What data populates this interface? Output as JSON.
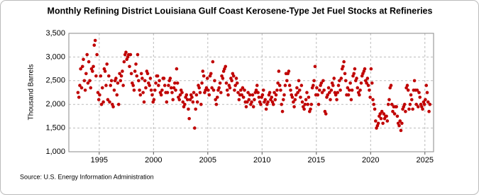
{
  "chart_data": {
    "type": "scatter",
    "title": "Monthly Refining District Louisiana Gulf Coast Kerosene-Type Jet Fuel Stocks at Refineries",
    "y_label": "Thousand Barrels",
    "source": "Source: U.S. Energy Information Administration",
    "color": "#c00000",
    "grid": true,
    "xlim": [
      1992.2,
      2025.8
    ],
    "ylim": [
      1000,
      3500
    ],
    "xticks": [
      1995,
      2000,
      2005,
      2010,
      2015,
      2020,
      2025
    ],
    "yticks": [
      {
        "value": 1000,
        "label": "1,000"
      },
      {
        "value": 1500,
        "label": "1,500"
      },
      {
        "value": 2000,
        "label": "2,000"
      },
      {
        "value": 2500,
        "label": "2,500"
      },
      {
        "value": 3000,
        "label": "3,000"
      },
      {
        "value": 3500,
        "label": "3,500"
      }
    ],
    "x": [
      1993.04,
      1993.13,
      1993.21,
      1993.29,
      1993.38,
      1993.46,
      1993.54,
      1993.63,
      1993.71,
      1993.79,
      1993.88,
      1993.96,
      1994.04,
      1994.13,
      1994.21,
      1994.29,
      1994.38,
      1994.46,
      1994.54,
      1994.63,
      1994.71,
      1994.79,
      1994.88,
      1994.96,
      1995.04,
      1995.13,
      1995.21,
      1995.29,
      1995.38,
      1995.46,
      1995.54,
      1995.63,
      1995.71,
      1995.79,
      1995.88,
      1995.96,
      1996.04,
      1996.13,
      1996.21,
      1996.29,
      1996.38,
      1996.46,
      1996.54,
      1996.63,
      1996.71,
      1996.79,
      1996.88,
      1996.96,
      1997.04,
      1997.13,
      1997.21,
      1997.29,
      1997.38,
      1997.46,
      1997.54,
      1997.63,
      1997.71,
      1997.79,
      1997.88,
      1997.96,
      1998.04,
      1998.13,
      1998.21,
      1998.29,
      1998.38,
      1998.46,
      1998.54,
      1998.63,
      1998.71,
      1998.79,
      1998.88,
      1998.96,
      1999.04,
      1999.13,
      1999.21,
      1999.29,
      1999.38,
      1999.46,
      1999.54,
      1999.63,
      1999.71,
      1999.79,
      1999.88,
      1999.96,
      2000.04,
      2000.13,
      2000.21,
      2000.29,
      2000.38,
      2000.46,
      2000.54,
      2000.63,
      2000.71,
      2000.79,
      2000.88,
      2000.96,
      2001.04,
      2001.13,
      2001.21,
      2001.29,
      2001.38,
      2001.46,
      2001.54,
      2001.63,
      2001.71,
      2001.79,
      2001.88,
      2001.96,
      2002.04,
      2002.13,
      2002.21,
      2002.29,
      2002.38,
      2002.46,
      2002.54,
      2002.63,
      2002.71,
      2002.79,
      2002.88,
      2002.96,
      2003.04,
      2003.13,
      2003.21,
      2003.29,
      2003.38,
      2003.46,
      2003.54,
      2003.63,
      2003.71,
      2003.79,
      2003.88,
      2003.96,
      2004.04,
      2004.13,
      2004.21,
      2004.29,
      2004.38,
      2004.46,
      2004.54,
      2004.63,
      2004.71,
      2004.79,
      2004.88,
      2004.96,
      2005.04,
      2005.13,
      2005.21,
      2005.29,
      2005.38,
      2005.46,
      2005.54,
      2005.63,
      2005.71,
      2005.79,
      2005.88,
      2005.96,
      2006.04,
      2006.13,
      2006.21,
      2006.29,
      2006.38,
      2006.46,
      2006.54,
      2006.63,
      2006.71,
      2006.79,
      2006.88,
      2006.96,
      2007.04,
      2007.13,
      2007.21,
      2007.29,
      2007.38,
      2007.46,
      2007.54,
      2007.63,
      2007.71,
      2007.79,
      2007.88,
      2007.96,
      2008.04,
      2008.13,
      2008.21,
      2008.29,
      2008.38,
      2008.46,
      2008.54,
      2008.63,
      2008.71,
      2008.79,
      2008.88,
      2008.96,
      2009.04,
      2009.13,
      2009.21,
      2009.29,
      2009.38,
      2009.46,
      2009.54,
      2009.63,
      2009.71,
      2009.79,
      2009.88,
      2009.96,
      2010.04,
      2010.13,
      2010.21,
      2010.29,
      2010.38,
      2010.46,
      2010.54,
      2010.63,
      2010.71,
      2010.79,
      2010.88,
      2010.96,
      2011.04,
      2011.13,
      2011.21,
      2011.29,
      2011.38,
      2011.46,
      2011.54,
      2011.63,
      2011.71,
      2011.79,
      2011.88,
      2011.96,
      2012.04,
      2012.13,
      2012.21,
      2012.29,
      2012.38,
      2012.46,
      2012.54,
      2012.63,
      2012.71,
      2012.79,
      2012.88,
      2012.96,
      2013.04,
      2013.13,
      2013.21,
      2013.29,
      2013.38,
      2013.46,
      2013.54,
      2013.63,
      2013.71,
      2013.79,
      2013.88,
      2013.96,
      2014.04,
      2014.13,
      2014.21,
      2014.29,
      2014.38,
      2014.46,
      2014.54,
      2014.63,
      2014.71,
      2014.79,
      2014.88,
      2014.96,
      2015.04,
      2015.13,
      2015.21,
      2015.29,
      2015.38,
      2015.46,
      2015.54,
      2015.63,
      2015.71,
      2015.79,
      2015.88,
      2015.96,
      2016.04,
      2016.13,
      2016.21,
      2016.29,
      2016.38,
      2016.46,
      2016.54,
      2016.63,
      2016.71,
      2016.79,
      2016.88,
      2016.96,
      2017.04,
      2017.13,
      2017.21,
      2017.29,
      2017.38,
      2017.46,
      2017.54,
      2017.63,
      2017.71,
      2017.79,
      2017.88,
      2017.96,
      2018.04,
      2018.13,
      2018.21,
      2018.29,
      2018.38,
      2018.46,
      2018.54,
      2018.63,
      2018.71,
      2018.79,
      2018.88,
      2018.96,
      2019.04,
      2019.13,
      2019.21,
      2019.29,
      2019.38,
      2019.46,
      2019.54,
      2019.63,
      2019.71,
      2019.79,
      2019.88,
      2019.96,
      2020.04,
      2020.13,
      2020.21,
      2020.29,
      2020.38,
      2020.46,
      2020.54,
      2020.63,
      2020.71,
      2020.79,
      2020.88,
      2020.96,
      2021.04,
      2021.13,
      2021.21,
      2021.29,
      2021.38,
      2021.46,
      2021.54,
      2021.63,
      2021.71,
      2021.79,
      2021.88,
      2021.96,
      2022.04,
      2022.13,
      2022.21,
      2022.29,
      2022.38,
      2022.46,
      2022.54,
      2022.63,
      2022.71,
      2022.79,
      2022.88,
      2022.96,
      2023.04,
      2023.13,
      2023.21,
      2023.29,
      2023.38,
      2023.46,
      2023.54,
      2023.63,
      2023.71,
      2023.79,
      2023.88,
      2023.96,
      2024.04,
      2024.13,
      2024.21,
      2024.29,
      2024.38,
      2024.46,
      2024.54,
      2024.63,
      2024.71,
      2024.79,
      2024.88,
      2024.96,
      2025.04,
      2025.13,
      2025.21,
      2025.29,
      2025.38,
      2025.46
    ],
    "values": [
      2250,
      2150,
      2400,
      2750,
      2350,
      2800,
      2950,
      2500,
      2300,
      2650,
      3050,
      2450,
      2900,
      2500,
      2350,
      2750,
      2700,
      2800,
      3250,
      3350,
      2600,
      3050,
      2250,
      2100,
      2200,
      2600,
      2000,
      2350,
      2050,
      2750,
      2700,
      2400,
      2850,
      2100,
      2600,
      2050,
      2400,
      2500,
      2000,
      1950,
      2300,
      2500,
      2550,
      2200,
      2450,
      2000,
      2650,
      2500,
      2600,
      2700,
      2400,
      2900,
      3050,
      3100,
      2950,
      3000,
      3050,
      2800,
      3050,
      2650,
      2450,
      2400,
      2300,
      2700,
      2850,
      2600,
      3050,
      2500,
      2300,
      2200,
      2650,
      2550,
      2250,
      2050,
      2500,
      2350,
      2700,
      2650,
      2450,
      2400,
      2550,
      2300,
      2200,
      2050,
      2100,
      2300,
      2450,
      2600,
      2600,
      2400,
      2500,
      2250,
      2200,
      2300,
      2550,
      2550,
      2400,
      2250,
      2050,
      2250,
      2400,
      2500,
      2550,
      2350,
      2250,
      2100,
      2350,
      2450,
      2300,
      2750,
      2450,
      2150,
      2100,
      2200,
      2300,
      2250,
      2050,
      1950,
      2000,
      2150,
      2200,
      2100,
      1900,
      1700,
      2100,
      2200,
      2150,
      2050,
      2250,
      1500,
      1900,
      2200,
      2050,
      2400,
      2350,
      2250,
      2000,
      2450,
      2700,
      2600,
      2250,
      2300,
      2350,
      2550,
      2300,
      2200,
      2600,
      2650,
      2350,
      2900,
      2300,
      2500,
      2100,
      2000,
      2150,
      2300,
      2350,
      2450,
      2250,
      2600,
      2550,
      2700,
      2750,
      2800,
      2450,
      2300,
      2200,
      2400,
      2350,
      2550,
      2500,
      2650,
      2600,
      2300,
      2400,
      2550,
      2450,
      2250,
      2100,
      2200,
      2300,
      2200,
      2350,
      2150,
      2300,
      2050,
      1950,
      2050,
      2250,
      2100,
      2200,
      2000,
      2050,
      2200,
      1950,
      2100,
      2250,
      2300,
      2400,
      2250,
      2150,
      2050,
      2000,
      2150,
      2200,
      2300,
      2050,
      2100,
      1900,
      2000,
      2050,
      2200,
      2250,
      2100,
      2150,
      2050,
      2000,
      2250,
      2100,
      2200,
      2300,
      2450,
      2700,
      2400,
      2300,
      2000,
      1850,
      2100,
      2200,
      2400,
      2650,
      2500,
      2650,
      2700,
      2400,
      2300,
      2200,
      2150,
      2050,
      1950,
      2100,
      2200,
      2350,
      2250,
      2500,
      2300,
      2150,
      2400,
      2050,
      1950,
      1900,
      2000,
      2100,
      2250,
      2000,
      2150,
      1850,
      1900,
      2000,
      2350,
      2400,
      2500,
      2800,
      2200,
      2350,
      2200,
      2000,
      2300,
      2400,
      2450,
      2250,
      2500,
      2300,
      1850,
      1800,
      2150,
      2200,
      2350,
      2250,
      2100,
      2300,
      2450,
      2400,
      2550,
      2250,
      2200,
      2100,
      2250,
      2400,
      2500,
      2300,
      2550,
      2750,
      2800,
      2900,
      2650,
      2500,
      2200,
      2350,
      2200,
      2300,
      2450,
      2100,
      2300,
      2600,
      2650,
      2750,
      2500,
      2550,
      2350,
      2250,
      2200,
      2300,
      2450,
      2600,
      2650,
      2700,
      2750,
      2500,
      2450,
      2550,
      2400,
      2300,
      2150,
      2750,
      2450,
      2100,
      2000,
      1900,
      1650,
      1500,
      1550,
      1600,
      1750,
      1800,
      1700,
      1850,
      1600,
      1800,
      1700,
      1750,
      1750,
      1650,
      2000,
      2100,
      2350,
      2400,
      2000,
      1850,
      1950,
      1800,
      1950,
      1950,
      1750,
      1600,
      1550,
      1650,
      1450,
      1600,
      1900,
      1950,
      2000,
      1850,
      2350,
      2400,
      2300,
      1900,
      2000,
      2200,
      2100,
      1900,
      2300,
      2500,
      2300,
      2000,
      2300,
      1950,
      2250,
      2150,
      2000,
      1950,
      1900,
      2050,
      2000,
      2100,
      2400,
      2250,
      2050,
      1850,
      2000
    ]
  }
}
